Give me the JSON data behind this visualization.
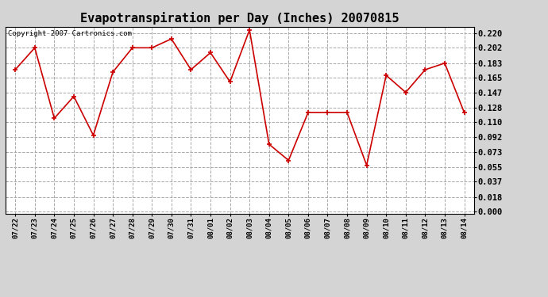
{
  "title": "Evapotranspiration per Day (Inches) 20070815",
  "copyright": "Copyright 2007 Cartronics.com",
  "dates": [
    "07/22",
    "07/23",
    "07/24",
    "07/25",
    "07/26",
    "07/27",
    "07/28",
    "07/29",
    "07/30",
    "07/31",
    "08/01",
    "08/02",
    "08/03",
    "08/04",
    "08/05",
    "08/06",
    "08/07",
    "08/08",
    "08/09",
    "08/10",
    "08/11",
    "08/12",
    "08/13",
    "08/14"
  ],
  "values": [
    0.175,
    0.202,
    0.115,
    0.142,
    0.094,
    0.172,
    0.202,
    0.202,
    0.213,
    0.175,
    0.196,
    0.16,
    0.224,
    0.083,
    0.063,
    0.122,
    0.122,
    0.122,
    0.057,
    0.168,
    0.147,
    0.175,
    0.183,
    0.122
  ],
  "yticks": [
    0.0,
    0.018,
    0.037,
    0.055,
    0.073,
    0.092,
    0.11,
    0.128,
    0.147,
    0.165,
    0.183,
    0.202,
    0.22
  ],
  "line_color": "#cc0000",
  "marker": "+",
  "bg_color": "#d4d4d4",
  "plot_bg": "#ffffff",
  "grid_color": "#aaaaaa",
  "title_fontsize": 11,
  "copyright_fontsize": 6.5,
  "tick_fontsize": 7.5,
  "xtick_fontsize": 6.5
}
